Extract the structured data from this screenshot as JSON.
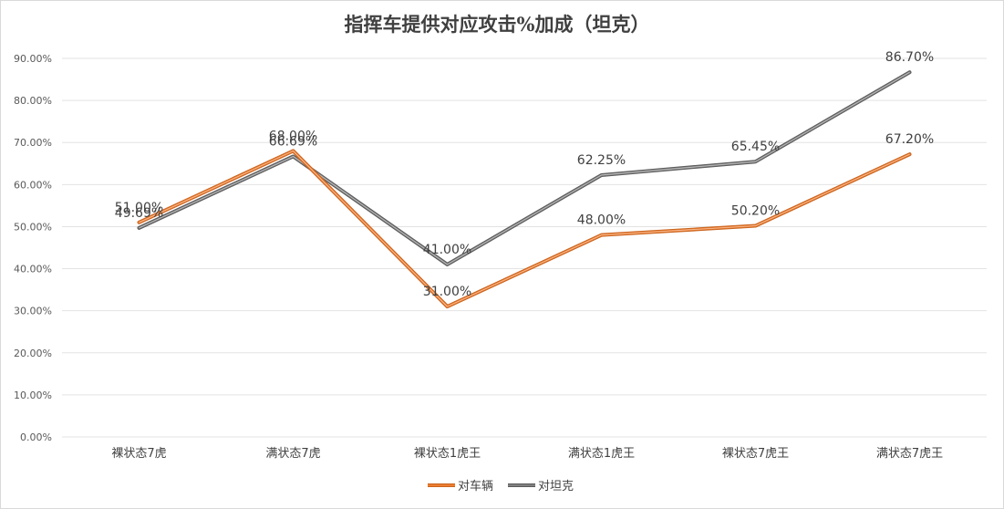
{
  "chart_data": {
    "type": "line",
    "title": "指挥车提供对应攻击%加成（坦克）",
    "categories": [
      "裸状态7虎",
      "满状态7虎",
      "裸状态1虎王",
      "满状态1虎王",
      "裸状态7虎王",
      "满状态7虎王"
    ],
    "ylim": [
      0,
      90
    ],
    "yticks": [
      0,
      10,
      20,
      30,
      40,
      50,
      60,
      70,
      80,
      90
    ],
    "ytick_labels": [
      "0.00%",
      "10.00%",
      "20.00%",
      "30.00%",
      "40.00%",
      "50.00%",
      "60.00%",
      "70.00%",
      "80.00%",
      "90.00%"
    ],
    "grid": true,
    "legend_position": "bottom-center",
    "series": [
      {
        "name": "对车辆",
        "color": "#ED7D31",
        "values": [
          51.0,
          68.0,
          31.0,
          48.0,
          50.2,
          67.2
        ],
        "labels": [
          "51.00%",
          "68.00%",
          "31.00%",
          "48.00%",
          "50.20%",
          "67.20%"
        ]
      },
      {
        "name": "对坦克",
        "color": "#7F7F7F",
        "values": [
          49.69,
          66.69,
          41.0,
          62.25,
          65.45,
          86.7
        ],
        "labels": [
          "49.69%",
          "66.69%",
          "41.00%",
          "62.25%",
          "65.45%",
          "86.70%"
        ]
      }
    ]
  }
}
